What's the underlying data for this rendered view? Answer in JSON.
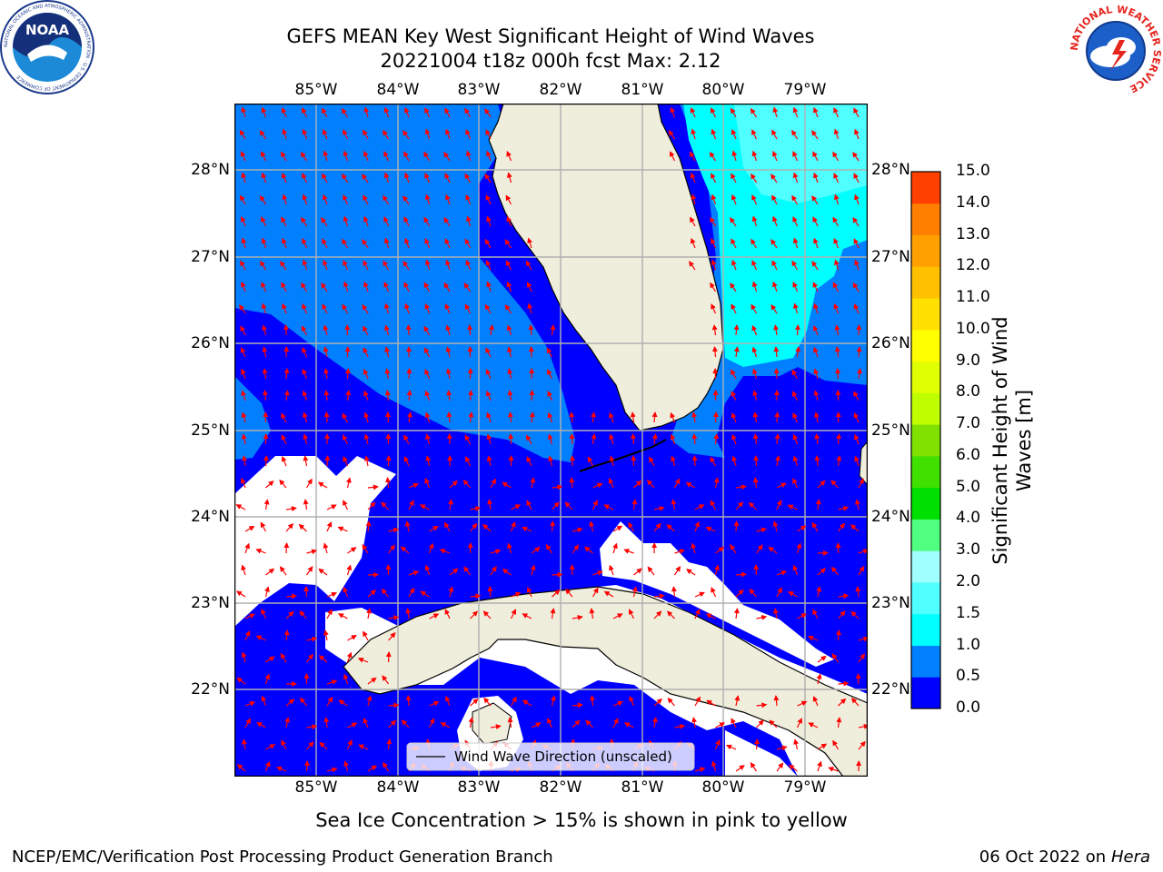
{
  "title_line1": "GEFS MEAN Key West Significant Height of Wind Waves",
  "title_line2": "20221004 t18z 000h fcst   Max: 2.12",
  "map": {
    "lon_labels": [
      "85°W",
      "84°W",
      "83°W",
      "82°W",
      "81°W",
      "80°W",
      "79°W"
    ],
    "lat_labels": [
      "28°N",
      "27°N",
      "26°N",
      "25°N",
      "24°N",
      "23°N",
      "22°N"
    ],
    "legend_label": "Wind Wave Direction (unscaled)",
    "colors": {
      "level_0_0.5": "#0000ff",
      "level_0.5_1.0": "#0080ff",
      "level_1.0_1.5": "#00ffff",
      "land": "#efeedc",
      "arrow": "#ff0000",
      "grid": "#b0b0b0"
    }
  },
  "colorbar": {
    "ticks": [
      "15.0",
      "14.0",
      "13.0",
      "12.0",
      "11.0",
      "10.0",
      "9.0",
      "8.0",
      "7.0",
      "6.0",
      "5.0",
      "4.0",
      "3.0",
      "2.0",
      "1.5",
      "1.0",
      "0.5",
      "0.0"
    ],
    "colors": [
      "#0000ff",
      "#0080ff",
      "#00ffff",
      "#50ffff",
      "#a0ffff",
      "#50ff80",
      "#00e000",
      "#40e000",
      "#80e000",
      "#c0ff00",
      "#e0ff00",
      "#ffff00",
      "#ffe000",
      "#ffc000",
      "#ffa000",
      "#ff8000",
      "#ff4000",
      "#ff0000"
    ],
    "label": "Significant Height of Wind Waves [m]"
  },
  "subtitle": "Sea Ice Concentration > 15% is shown in pink to yellow",
  "footer": {
    "left": "NCEP/EMC/Verification Post Processing Product Generation Branch",
    "right_date": "06 Oct 2022 on ",
    "right_host": "Hera"
  },
  "logos": {
    "noaa_text": "NOAA",
    "noaa_ring": "NATIONAL OCEANIC AND ATMOSPHERIC ADMINISTRATION · U.S. DEPARTMENT OF COMMERCE",
    "nws_ring": "NATIONAL WEATHER SERVICE"
  }
}
